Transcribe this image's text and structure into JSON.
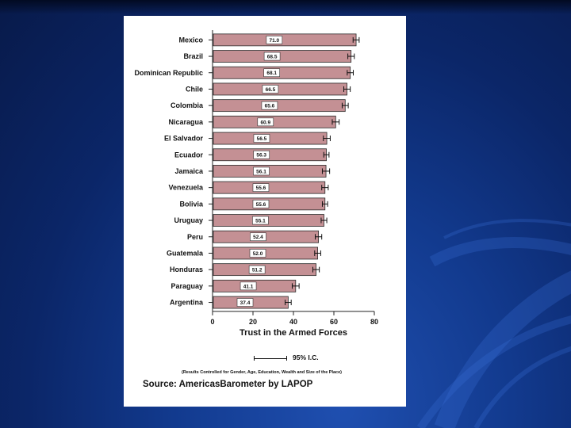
{
  "chart_data": {
    "type": "bar",
    "orientation": "horizontal",
    "categories": [
      "Mexico",
      "Brazil",
      "Dominican Republic",
      "Chile",
      "Colombia",
      "Nicaragua",
      "El Salvador",
      "Ecuador",
      "Jamaica",
      "Venezuela",
      "Bolivia",
      "Uruguay",
      "Peru",
      "Guatemala",
      "Honduras",
      "Paraguay",
      "Argentina"
    ],
    "values": [
      71.0,
      68.5,
      68.1,
      66.5,
      65.6,
      60.9,
      56.5,
      56.3,
      56.1,
      55.6,
      55.6,
      55.1,
      52.4,
      52.0,
      51.2,
      41.1,
      37.4
    ],
    "value_labels": [
      "71.0",
      "68.5",
      "68.1",
      "66.5",
      "65.6",
      "60.9",
      "56.5",
      "56.3",
      "56.1",
      "55.6",
      "55.6",
      "55.1",
      "52.4",
      "52.0",
      "51.2",
      "41.1",
      "37.4"
    ],
    "ci_halfwidth": [
      1.5,
      1.6,
      1.5,
      1.6,
      1.5,
      1.7,
      1.7,
      1.3,
      1.8,
      1.6,
      1.3,
      1.4,
      1.6,
      1.5,
      1.6,
      1.7,
      1.5
    ],
    "xlim": [
      0,
      80
    ],
    "xticks": [
      "0",
      "20",
      "40",
      "60",
      "80"
    ],
    "xlabel": "Trust in the Armed Forces",
    "legend": "95% I.C.",
    "note": "(Results Controlled for Gender, Age, Education, Wealth and Size of the Place)",
    "source": "Source: AmericasBarometer by  LAPOP",
    "grid": false,
    "bar_color": "#c49094",
    "bar_edge_color": "#2a2a2a"
  }
}
